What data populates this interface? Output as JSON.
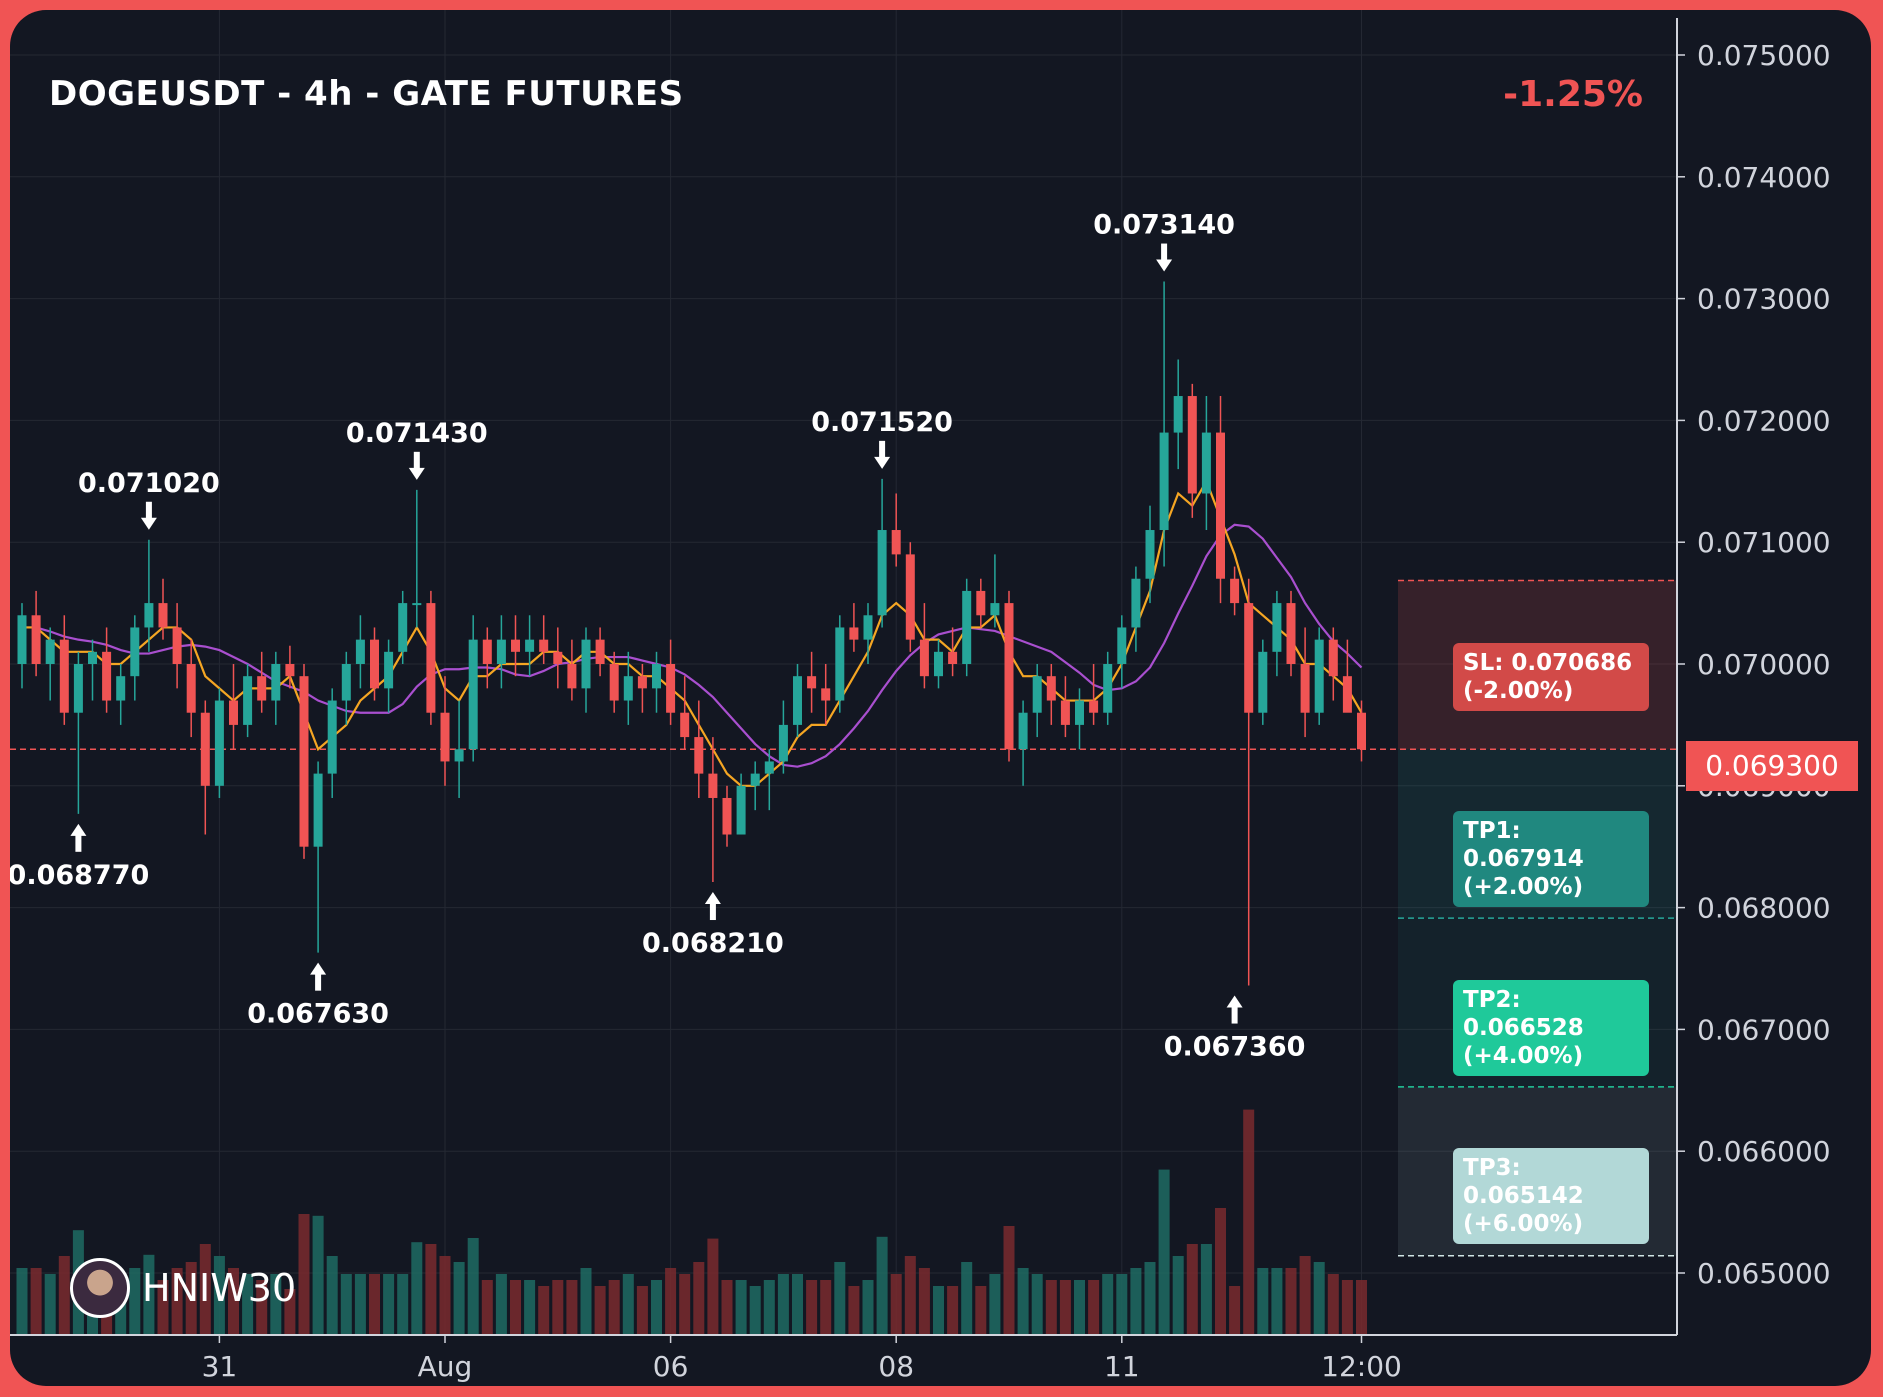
{
  "header": {
    "title": "DOGEUSDT - 4h - GATE FUTURES",
    "change": "-1.25%"
  },
  "brand": {
    "name": "HNIW30",
    "avatar_icon": "avatar-icon"
  },
  "colors": {
    "up": "#26a69a",
    "down": "#f05454",
    "ma_fast": "#f5a623",
    "ma_slow": "#a94fcf",
    "background": "#131722"
  },
  "levels": {
    "current": {
      "label": "0.069300",
      "value": 0.0693
    },
    "sl": {
      "line1": "SL: 0.070686",
      "line2": "(-2.00%)",
      "value": 0.070686
    },
    "tp1": {
      "line1": "TP1: 0.067914",
      "line2": "(+2.00%)",
      "value": 0.067914
    },
    "tp2": {
      "line1": "TP2: 0.066528",
      "line2": "(+4.00%)",
      "value": 0.066528
    },
    "tp3": {
      "line1": "TP3: 0.065142",
      "line2": "(+6.00%)",
      "value": 0.065142
    }
  },
  "chart_data": {
    "type": "candlestick",
    "title": "DOGEUSDT - 4h - GATE FUTURES",
    "ylim": [
      0.0645,
      0.0755
    ],
    "y_ticks": [
      "0.065000",
      "0.066000",
      "0.067000",
      "0.068000",
      "0.069000",
      "0.070000",
      "0.071000",
      "0.072000",
      "0.073000",
      "0.074000",
      "0.075000"
    ],
    "x_ticks": [
      {
        "label": "31",
        "bar": 14
      },
      {
        "label": "Aug",
        "bar": 30
      },
      {
        "label": "06",
        "bar": 46
      },
      {
        "label": "08",
        "bar": 62
      },
      {
        "label": "11",
        "bar": 78
      },
      {
        "label": "12:00",
        "bar": 95
      }
    ],
    "annotations": [
      {
        "label": "0.071020",
        "bar": 9,
        "value": 0.07102,
        "dir": "high"
      },
      {
        "label": "0.068770",
        "bar": 4,
        "value": 0.06877,
        "dir": "low"
      },
      {
        "label": "0.067630",
        "bar": 21,
        "value": 0.06763,
        "dir": "low"
      },
      {
        "label": "0.071430",
        "bar": 28,
        "value": 0.07143,
        "dir": "high"
      },
      {
        "label": "0.068210",
        "bar": 49,
        "value": 0.06821,
        "dir": "low"
      },
      {
        "label": "0.071520",
        "bar": 61,
        "value": 0.07152,
        "dir": "high"
      },
      {
        "label": "0.073140",
        "bar": 81,
        "value": 0.07314,
        "dir": "high"
      },
      {
        "label": "0.067360",
        "bar": 86,
        "value": 0.06736,
        "dir": "low"
      }
    ],
    "candles": [
      [
        0.07,
        0.0705,
        0.0698,
        0.0704
      ],
      [
        0.0704,
        0.0706,
        0.0699,
        0.07
      ],
      [
        0.07,
        0.0703,
        0.0697,
        0.0702
      ],
      [
        0.0702,
        0.0704,
        0.0695,
        0.0696
      ],
      [
        0.0696,
        0.0701,
        0.06877,
        0.07
      ],
      [
        0.07,
        0.0702,
        0.0697,
        0.0701
      ],
      [
        0.0701,
        0.0703,
        0.0696,
        0.0697
      ],
      [
        0.0697,
        0.07,
        0.0695,
        0.0699
      ],
      [
        0.0699,
        0.0704,
        0.0697,
        0.0703
      ],
      [
        0.0703,
        0.07102,
        0.0701,
        0.0705
      ],
      [
        0.0705,
        0.0707,
        0.0702,
        0.0703
      ],
      [
        0.0703,
        0.0705,
        0.0698,
        0.07
      ],
      [
        0.07,
        0.0702,
        0.0694,
        0.0696
      ],
      [
        0.0696,
        0.0697,
        0.0686,
        0.069
      ],
      [
        0.069,
        0.0698,
        0.0689,
        0.0697
      ],
      [
        0.0697,
        0.07,
        0.0693,
        0.0695
      ],
      [
        0.0695,
        0.07,
        0.0694,
        0.0699
      ],
      [
        0.0699,
        0.0701,
        0.0696,
        0.0697
      ],
      [
        0.0697,
        0.0701,
        0.0695,
        0.07
      ],
      [
        0.07,
        0.07015,
        0.0698,
        0.0699
      ],
      [
        0.0699,
        0.07,
        0.0684,
        0.0685
      ],
      [
        0.0685,
        0.0692,
        0.06763,
        0.0691
      ],
      [
        0.0691,
        0.0698,
        0.0689,
        0.0697
      ],
      [
        0.0697,
        0.0701,
        0.0695,
        0.07
      ],
      [
        0.07,
        0.0704,
        0.0698,
        0.0702
      ],
      [
        0.0702,
        0.0703,
        0.0697,
        0.0698
      ],
      [
        0.0698,
        0.0702,
        0.0696,
        0.0701
      ],
      [
        0.0701,
        0.0706,
        0.07,
        0.0705
      ],
      [
        0.0705,
        0.07143,
        0.0703,
        0.0705
      ],
      [
        0.0705,
        0.0706,
        0.0695,
        0.0696
      ],
      [
        0.0696,
        0.0699,
        0.069,
        0.0692
      ],
      [
        0.0692,
        0.0697,
        0.0689,
        0.0693
      ],
      [
        0.0693,
        0.0704,
        0.0692,
        0.0702
      ],
      [
        0.0702,
        0.0703,
        0.0698,
        0.07
      ],
      [
        0.07,
        0.0704,
        0.0698,
        0.0702
      ],
      [
        0.0702,
        0.0704,
        0.0699,
        0.0701
      ],
      [
        0.0701,
        0.0704,
        0.0699,
        0.0702
      ],
      [
        0.0702,
        0.0704,
        0.07,
        0.0701
      ],
      [
        0.0701,
        0.0703,
        0.0698,
        0.07
      ],
      [
        0.07,
        0.0702,
        0.0697,
        0.0698
      ],
      [
        0.0698,
        0.0703,
        0.0696,
        0.0702
      ],
      [
        0.0702,
        0.0703,
        0.0699,
        0.07
      ],
      [
        0.07,
        0.0701,
        0.0696,
        0.0697
      ],
      [
        0.0697,
        0.0701,
        0.0695,
        0.0699
      ],
      [
        0.0699,
        0.07,
        0.0696,
        0.0698
      ],
      [
        0.0698,
        0.0701,
        0.0696,
        0.07
      ],
      [
        0.07,
        0.0702,
        0.0695,
        0.0696
      ],
      [
        0.0696,
        0.0699,
        0.0693,
        0.0694
      ],
      [
        0.0694,
        0.0697,
        0.0689,
        0.0691
      ],
      [
        0.0691,
        0.0694,
        0.06821,
        0.0689
      ],
      [
        0.0689,
        0.069,
        0.0685,
        0.0686
      ],
      [
        0.0686,
        0.0691,
        0.0686,
        0.069
      ],
      [
        0.069,
        0.0692,
        0.0688,
        0.0691
      ],
      [
        0.0691,
        0.0693,
        0.0688,
        0.0692
      ],
      [
        0.0692,
        0.0697,
        0.0691,
        0.0695
      ],
      [
        0.0695,
        0.07,
        0.0694,
        0.0699
      ],
      [
        0.0699,
        0.0701,
        0.0696,
        0.0698
      ],
      [
        0.0698,
        0.07,
        0.0695,
        0.0697
      ],
      [
        0.0697,
        0.0704,
        0.0696,
        0.0703
      ],
      [
        0.0703,
        0.0705,
        0.0701,
        0.0702
      ],
      [
        0.0702,
        0.0705,
        0.07,
        0.0704
      ],
      [
        0.0704,
        0.07152,
        0.0703,
        0.0711
      ],
      [
        0.0711,
        0.0714,
        0.0708,
        0.0709
      ],
      [
        0.0709,
        0.071,
        0.0701,
        0.0702
      ],
      [
        0.0702,
        0.0705,
        0.0698,
        0.0699
      ],
      [
        0.0699,
        0.0702,
        0.0698,
        0.0701
      ],
      [
        0.0701,
        0.0703,
        0.0699,
        0.07
      ],
      [
        0.07,
        0.0707,
        0.0699,
        0.0706
      ],
      [
        0.0706,
        0.0707,
        0.0703,
        0.0704
      ],
      [
        0.0704,
        0.0709,
        0.0703,
        0.0705
      ],
      [
        0.0705,
        0.0706,
        0.0692,
        0.0693
      ],
      [
        0.0693,
        0.0697,
        0.069,
        0.0696
      ],
      [
        0.0696,
        0.07,
        0.0694,
        0.0699
      ],
      [
        0.0699,
        0.07,
        0.0695,
        0.0697
      ],
      [
        0.0697,
        0.0699,
        0.0694,
        0.0695
      ],
      [
        0.0695,
        0.0698,
        0.0693,
        0.0697
      ],
      [
        0.0697,
        0.07,
        0.0695,
        0.0696
      ],
      [
        0.0696,
        0.0701,
        0.0695,
        0.07
      ],
      [
        0.07,
        0.0704,
        0.0698,
        0.0703
      ],
      [
        0.0703,
        0.0708,
        0.0701,
        0.0707
      ],
      [
        0.0707,
        0.0713,
        0.0705,
        0.0711
      ],
      [
        0.0711,
        0.07314,
        0.0708,
        0.0719
      ],
      [
        0.0719,
        0.0725,
        0.0716,
        0.0722
      ],
      [
        0.0722,
        0.0723,
        0.0712,
        0.0714
      ],
      [
        0.0714,
        0.0722,
        0.0711,
        0.0719
      ],
      [
        0.0719,
        0.0722,
        0.0705,
        0.0707
      ],
      [
        0.0707,
        0.0708,
        0.0704,
        0.0705
      ],
      [
        0.0705,
        0.0707,
        0.06736,
        0.0696
      ],
      [
        0.0696,
        0.0702,
        0.0695,
        0.0701
      ],
      [
        0.0701,
        0.0706,
        0.0699,
        0.0705
      ],
      [
        0.0705,
        0.0706,
        0.0699,
        0.07
      ],
      [
        0.07,
        0.0703,
        0.0694,
        0.0696
      ],
      [
        0.0696,
        0.0703,
        0.0695,
        0.0702
      ],
      [
        0.0702,
        0.0703,
        0.0697,
        0.0699
      ],
      [
        0.0699,
        0.0702,
        0.0697,
        0.0696
      ],
      [
        0.0696,
        0.0697,
        0.0692,
        0.0693
      ]
    ],
    "ma_fast": [
      0.0703,
      0.0703,
      0.0702,
      0.0701,
      0.0701,
      0.0701,
      0.07,
      0.07,
      0.0701,
      0.0702,
      0.0703,
      0.0703,
      0.0702,
      0.0699,
      0.0698,
      0.0697,
      0.0698,
      0.0698,
      0.0698,
      0.0699,
      0.0696,
      0.0693,
      0.0694,
      0.0695,
      0.0697,
      0.0698,
      0.0699,
      0.0701,
      0.0703,
      0.0701,
      0.0698,
      0.0697,
      0.0699,
      0.0699,
      0.07,
      0.07,
      0.07,
      0.0701,
      0.0701,
      0.07,
      0.0701,
      0.0701,
      0.07,
      0.07,
      0.0699,
      0.0699,
      0.0698,
      0.0697,
      0.0695,
      0.0693,
      0.0691,
      0.069,
      0.069,
      0.0691,
      0.0692,
      0.0694,
      0.0695,
      0.0695,
      0.0697,
      0.0699,
      0.0701,
      0.0704,
      0.0705,
      0.0704,
      0.0702,
      0.0702,
      0.0701,
      0.0703,
      0.0703,
      0.0704,
      0.0701,
      0.0699,
      0.0699,
      0.0698,
      0.0697,
      0.0697,
      0.0697,
      0.0698,
      0.07,
      0.0703,
      0.0706,
      0.0711,
      0.0714,
      0.0713,
      0.0715,
      0.0712,
      0.0709,
      0.0705,
      0.0704,
      0.0703,
      0.0702,
      0.07,
      0.07,
      0.0699,
      0.0698,
      0.0696
    ]
  }
}
